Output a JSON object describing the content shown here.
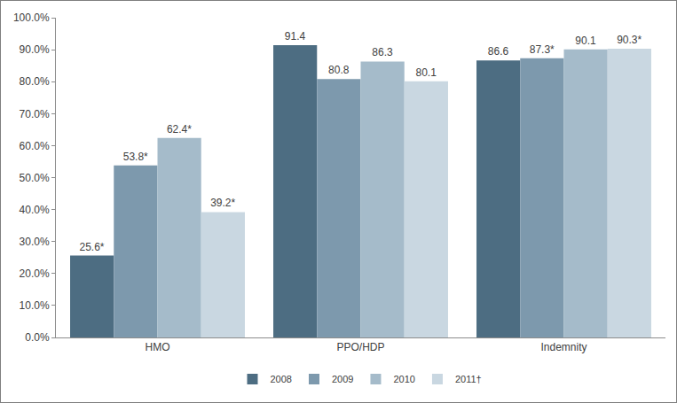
{
  "chart_data": {
    "type": "bar",
    "categories": [
      "HMO",
      "PPO/HDP",
      "Indemnity"
    ],
    "series": [
      {
        "name": "2008",
        "color": "#4d6d82",
        "values": [
          25.6,
          91.4,
          86.6
        ],
        "value_labels": [
          "25.6*",
          "91.4",
          "86.6"
        ]
      },
      {
        "name": "2009",
        "color": "#7d99ad",
        "values": [
          53.8,
          80.8,
          87.3
        ],
        "value_labels": [
          "53.8*",
          "80.8",
          "87.3*"
        ]
      },
      {
        "name": "2010",
        "color": "#a5bbca",
        "values": [
          62.4,
          86.3,
          90.1
        ],
        "value_labels": [
          "62.4*",
          "86.3",
          "90.1"
        ]
      },
      {
        "name": "2011†",
        "color": "#c9d7e1",
        "values": [
          39.2,
          80.1,
          90.3
        ],
        "value_labels": [
          "39.2*",
          "80.1",
          "90.3*"
        ]
      }
    ],
    "ylim": [
      0,
      100
    ],
    "yticks": [
      {
        "value": 0,
        "label": "0.0%"
      },
      {
        "value": 10,
        "label": "10.0%"
      },
      {
        "value": 20,
        "label": "20.0%"
      },
      {
        "value": 30,
        "label": "30.0%"
      },
      {
        "value": 40,
        "label": "40.0%"
      },
      {
        "value": 50,
        "label": "50.0%"
      },
      {
        "value": 60,
        "label": "60.0%"
      },
      {
        "value": 70,
        "label": "70.0%"
      },
      {
        "value": 80,
        "label": "80.0%"
      },
      {
        "value": 90,
        "label": "90.0%"
      },
      {
        "value": 100,
        "label": "100.0%"
      }
    ],
    "grid": false,
    "legend": "bottom",
    "data_labels": true
  }
}
